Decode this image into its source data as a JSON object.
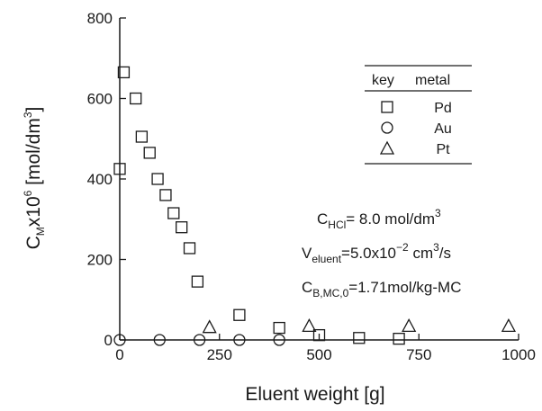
{
  "chart_data": {
    "type": "scatter",
    "xlabel": "Eluent weight [g]",
    "ylabel": {
      "main": "C",
      "sub": "M",
      "mid": "x10",
      "sup": "6",
      "unit": " [mol/dm",
      "unit_sup": "3",
      "end": "]"
    },
    "xlim": [
      0,
      1000
    ],
    "ylim": [
      0,
      800
    ],
    "xticks": [
      0,
      250,
      500,
      750,
      1000
    ],
    "yticks": [
      0,
      200,
      400,
      600,
      800
    ],
    "grid": false,
    "legend": {
      "placement": "top-right",
      "header_key": "key",
      "header_metal": "metal",
      "entries": [
        {
          "symbol": "square",
          "label": "Pd"
        },
        {
          "symbol": "circle",
          "label": "Au"
        },
        {
          "symbol": "triangle",
          "label": "Pt"
        }
      ]
    },
    "series": [
      {
        "name": "Pd",
        "symbol": "square",
        "points": [
          [
            0,
            425
          ],
          [
            10,
            665
          ],
          [
            40,
            600
          ],
          [
            55,
            505
          ],
          [
            75,
            465
          ],
          [
            95,
            400
          ],
          [
            115,
            360
          ],
          [
            135,
            315
          ],
          [
            155,
            280
          ],
          [
            175,
            228
          ],
          [
            195,
            145
          ],
          [
            300,
            62
          ],
          [
            400,
            30
          ],
          [
            500,
            12
          ],
          [
            600,
            5
          ],
          [
            700,
            3
          ]
        ]
      },
      {
        "name": "Au",
        "symbol": "circle",
        "points": [
          [
            0,
            0
          ],
          [
            100,
            0
          ],
          [
            200,
            0
          ],
          [
            300,
            0
          ],
          [
            400,
            0
          ]
        ]
      },
      {
        "name": "Pt",
        "symbol": "triangle",
        "points": [
          [
            225,
            32
          ],
          [
            475,
            35
          ],
          [
            725,
            35
          ],
          [
            975,
            35
          ]
        ]
      }
    ],
    "annotations": [
      {
        "main": "C",
        "sub": "HCl",
        "rest": "= 8.0 mol/dm",
        "sup": "3",
        "tail": ""
      },
      {
        "main": "V",
        "sub": "eluent",
        "rest": "=5.0x10",
        "sup": "−2",
        "tail": " cm",
        "sup2": "3",
        "tail2": "/s"
      },
      {
        "main": "C",
        "sub": "B,MC,0",
        "rest": "=1.71mol/kg-MC",
        "sup": "",
        "tail": ""
      }
    ]
  }
}
